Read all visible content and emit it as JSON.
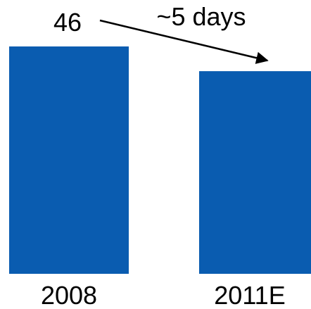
{
  "chart_data": {
    "type": "bar",
    "categories": [
      "2008",
      "2011E"
    ],
    "values": [
      46,
      41
    ],
    "ylim": [
      0,
      46
    ],
    "grid": false,
    "legend": "none",
    "data_labels": [
      "46",
      ""
    ],
    "annotation": {
      "text": "~5 days",
      "from_category": "2008",
      "to_category": "2011E"
    },
    "colors": {
      "bar": "#0A5CB0",
      "text": "#000000",
      "arrow": "#000000"
    }
  }
}
